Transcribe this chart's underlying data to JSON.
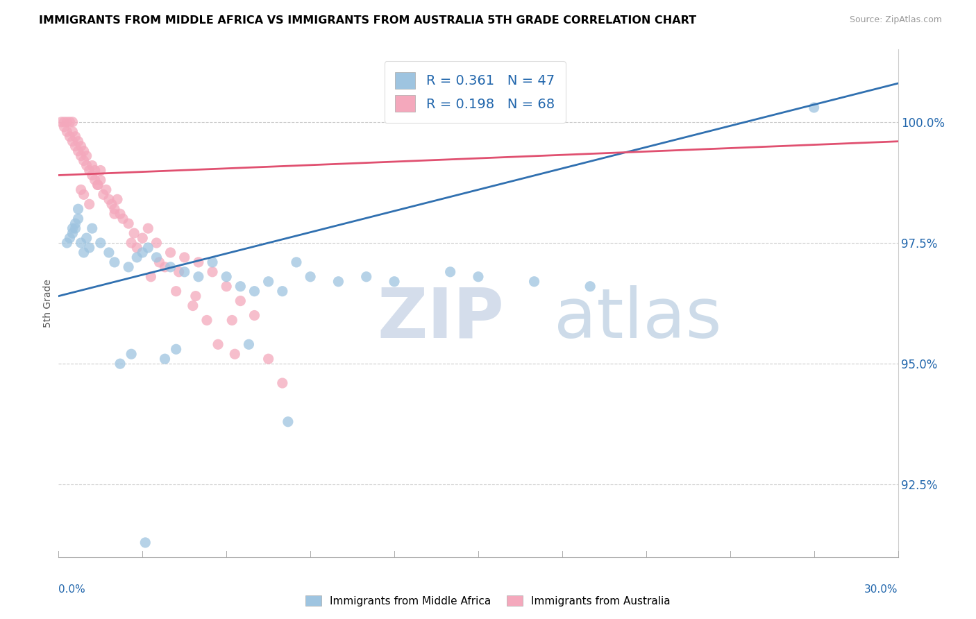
{
  "title": "IMMIGRANTS FROM MIDDLE AFRICA VS IMMIGRANTS FROM AUSTRALIA 5TH GRADE CORRELATION CHART",
  "source": "Source: ZipAtlas.com",
  "ylabel": "5th Grade",
  "y_ticks": [
    92.5,
    95.0,
    97.5,
    100.0
  ],
  "y_tick_labels": [
    "92.5%",
    "95.0%",
    "97.5%",
    "100.0%"
  ],
  "xlim": [
    0.0,
    30.0
  ],
  "ylim": [
    91.0,
    101.5
  ],
  "blue_R": "0.361",
  "blue_N": "47",
  "pink_R": "0.198",
  "pink_N": "68",
  "blue_color": "#9EC4E0",
  "pink_color": "#F4A8BC",
  "blue_line_color": "#3070B0",
  "pink_line_color": "#E05070",
  "legend_label_blue": "Immigrants from Middle Africa",
  "legend_label_pink": "Immigrants from Australia",
  "blue_line_x0": 0.0,
  "blue_line_y0": 96.4,
  "blue_line_x1": 30.0,
  "blue_line_y1": 100.8,
  "pink_line_x0": 0.0,
  "pink_line_y0": 98.9,
  "pink_line_x1": 30.0,
  "pink_line_y1": 99.6,
  "blue_scatter_x": [
    0.3,
    0.4,
    0.5,
    0.5,
    0.6,
    0.6,
    0.7,
    0.7,
    0.8,
    0.9,
    1.0,
    1.1,
    1.2,
    1.5,
    1.8,
    2.0,
    2.5,
    2.8,
    3.0,
    3.2,
    3.5,
    4.0,
    4.5,
    5.0,
    5.5,
    6.0,
    6.5,
    7.0,
    7.5,
    8.0,
    8.5,
    9.0,
    10.0,
    11.0,
    12.0,
    14.0,
    15.0,
    17.0,
    19.0,
    2.2,
    2.6,
    3.8,
    4.2,
    6.8,
    8.2,
    27.0,
    3.1
  ],
  "blue_scatter_y": [
    97.5,
    97.6,
    97.7,
    97.8,
    97.8,
    97.9,
    98.0,
    98.2,
    97.5,
    97.3,
    97.6,
    97.4,
    97.8,
    97.5,
    97.3,
    97.1,
    97.0,
    97.2,
    97.3,
    97.4,
    97.2,
    97.0,
    96.9,
    96.8,
    97.1,
    96.8,
    96.6,
    96.5,
    96.7,
    96.5,
    97.1,
    96.8,
    96.7,
    96.8,
    96.7,
    96.9,
    96.8,
    96.7,
    96.6,
    95.0,
    95.2,
    95.1,
    95.3,
    95.4,
    93.8,
    100.3,
    91.3
  ],
  "pink_scatter_x": [
    0.1,
    0.2,
    0.2,
    0.3,
    0.3,
    0.4,
    0.4,
    0.5,
    0.5,
    0.5,
    0.6,
    0.6,
    0.7,
    0.7,
    0.8,
    0.8,
    0.9,
    0.9,
    1.0,
    1.0,
    1.1,
    1.2,
    1.2,
    1.3,
    1.3,
    1.4,
    1.5,
    1.5,
    1.6,
    1.7,
    1.8,
    1.9,
    2.0,
    2.1,
    2.2,
    2.3,
    2.5,
    2.7,
    3.0,
    3.2,
    3.5,
    4.0,
    4.5,
    5.0,
    5.5,
    6.0,
    6.5,
    7.0,
    3.6,
    4.3,
    4.9,
    5.7,
    7.5,
    6.2,
    0.8,
    1.1,
    2.8,
    3.8,
    4.8,
    0.9,
    1.4,
    2.0,
    2.6,
    3.3,
    4.2,
    5.3,
    6.3,
    8.0
  ],
  "pink_scatter_y": [
    100.0,
    100.0,
    99.9,
    100.0,
    99.8,
    100.0,
    99.7,
    99.8,
    99.6,
    100.0,
    99.7,
    99.5,
    99.6,
    99.4,
    99.5,
    99.3,
    99.2,
    99.4,
    99.3,
    99.1,
    99.0,
    98.9,
    99.1,
    98.8,
    99.0,
    98.7,
    98.8,
    99.0,
    98.5,
    98.6,
    98.4,
    98.3,
    98.2,
    98.4,
    98.1,
    98.0,
    97.9,
    97.7,
    97.6,
    97.8,
    97.5,
    97.3,
    97.2,
    97.1,
    96.9,
    96.6,
    96.3,
    96.0,
    97.1,
    96.9,
    96.4,
    95.4,
    95.1,
    95.9,
    98.6,
    98.3,
    97.4,
    97.0,
    96.2,
    98.5,
    98.7,
    98.1,
    97.5,
    96.8,
    96.5,
    95.9,
    95.2,
    94.6
  ]
}
